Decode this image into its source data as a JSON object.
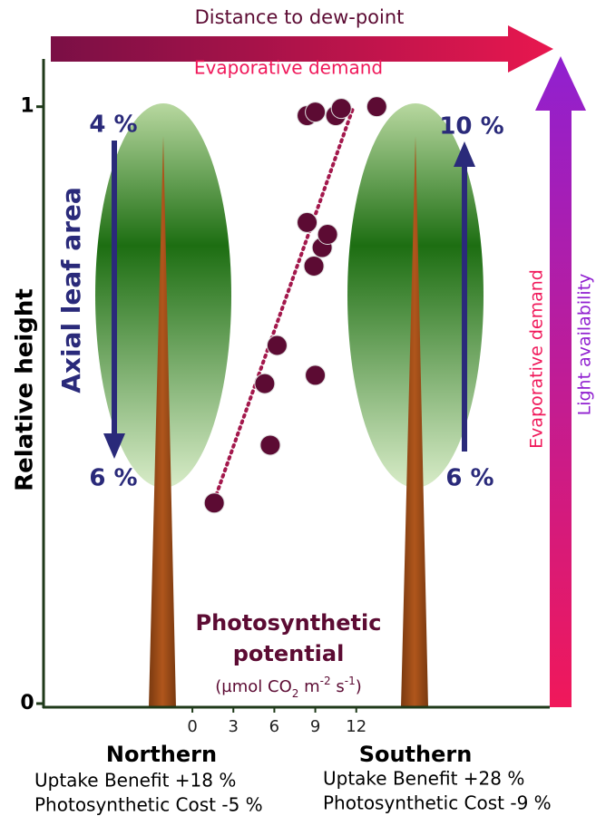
{
  "chart_data": {
    "type": "scatter",
    "y_label": "Relative height",
    "x_label": [
      "Photosynthetic",
      "potential"
    ],
    "x_unit": [
      "(µmol CO",
      "2",
      " m",
      "-2",
      " s",
      "-1",
      ")"
    ],
    "xlim": [
      -10.9,
      26.1
    ],
    "xticks": [
      0,
      3,
      6,
      9,
      12
    ],
    "ylim": [
      0,
      1.08
    ],
    "yticks": [
      0,
      1
    ],
    "series": [
      {
        "color": "#5c0b33",
        "x": [
          1.6,
          5.7,
          5.3,
          6.2,
          9.0,
          8.9,
          9.5,
          9.9,
          8.4,
          8.4,
          9.0,
          10.5,
          10.9,
          13.5
        ],
        "values": [
          0.336,
          0.433,
          0.536,
          0.6,
          0.55,
          0.733,
          0.764,
          0.786,
          0.806,
          0.985,
          0.991,
          0.985,
          0.997,
          1.0
        ]
      }
    ],
    "trendline": {
      "color": "#a3184c",
      "x": [
        1.6,
        11.8
      ],
      "values": [
        0.34,
        1.0
      ]
    },
    "annotations": {
      "top_arrow": [
        "Distance to dew-point",
        "Evaporative demand"
      ],
      "side_arrow": [
        "Evaporative demand",
        "Light availability"
      ],
      "leaf_area": "Axial leaf area",
      "northern": {
        "name": "Northern",
        "top": "4 %",
        "bottom": "6 %",
        "benefit": "Uptake Benefit +18 %",
        "cost": "Photosynthetic Cost -5 %"
      },
      "southern": {
        "name": "Southern",
        "top": "10 %",
        "bottom": "6 %",
        "benefit": "Uptake Benefit +28 %",
        "cost": "Photosynthetic Cost -9 %"
      }
    }
  }
}
